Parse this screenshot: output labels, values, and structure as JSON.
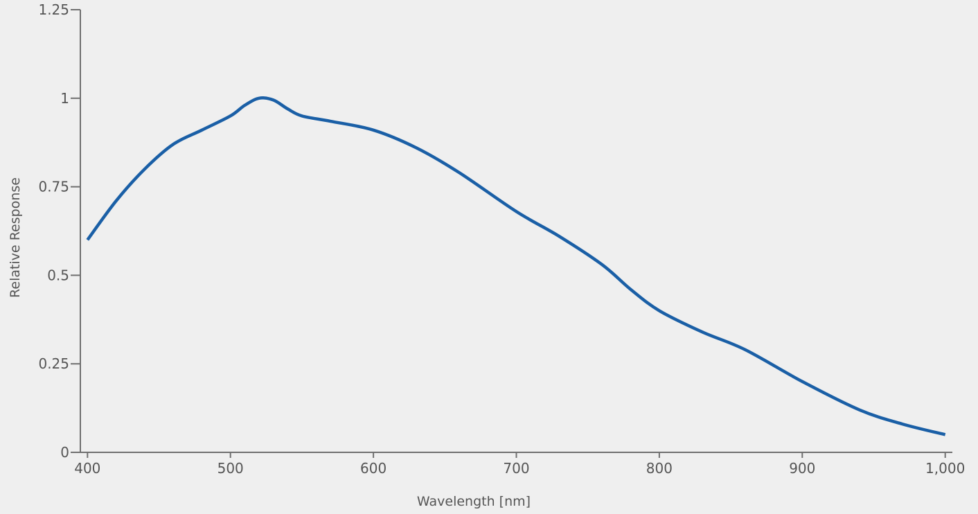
{
  "colors": {
    "background": "#efefef",
    "axis": "#6f6f6f",
    "text": "#555555",
    "series": "#1a5fa6"
  },
  "chart_data": {
    "type": "line",
    "title": "",
    "xlabel": "Wavelength [nm]",
    "ylabel": "Relative Response",
    "xlim": [
      395,
      1005
    ],
    "ylim": [
      0,
      1.25
    ],
    "xticks": [
      400,
      500,
      600,
      700,
      800,
      900,
      1000
    ],
    "xtick_labels": [
      "400",
      "500",
      "600",
      "700",
      "800",
      "900",
      "1,000"
    ],
    "yticks": [
      0,
      0.25,
      0.5,
      0.75,
      1,
      1.25
    ],
    "ytick_labels": [
      "0",
      "0.25",
      "0.5",
      "0.75",
      "1",
      "1.25"
    ],
    "grid": false,
    "series": [
      {
        "x": [
          400,
          420,
          440,
          460,
          480,
          500,
          510,
          520,
          530,
          540,
          550,
          570,
          600,
          630,
          660,
          700,
          730,
          760,
          780,
          800,
          830,
          860,
          900,
          940,
          970,
          1000
        ],
        "y": [
          0.6,
          0.71,
          0.8,
          0.87,
          0.91,
          0.95,
          0.98,
          1.0,
          0.995,
          0.97,
          0.95,
          0.935,
          0.91,
          0.86,
          0.79,
          0.68,
          0.61,
          0.53,
          0.46,
          0.4,
          0.34,
          0.29,
          0.2,
          0.12,
          0.08,
          0.05
        ]
      }
    ]
  }
}
